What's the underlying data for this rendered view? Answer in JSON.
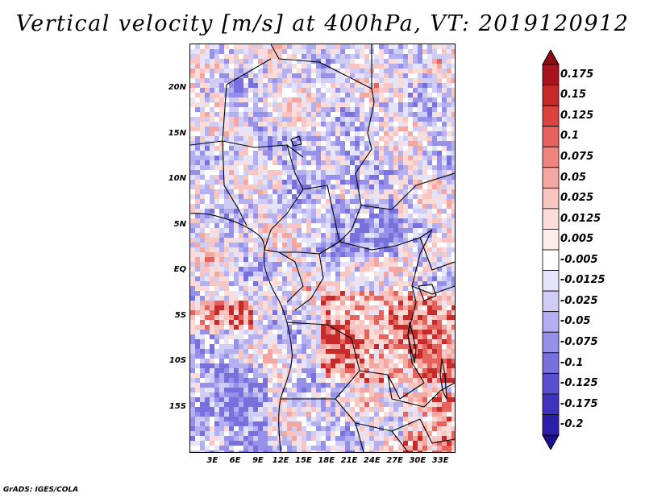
{
  "title": "Vertical velocity [m/s] at 400hPa, VT: 2019120912",
  "credit": "GrADS: IGES/COLA",
  "map": {
    "type": "heatmap",
    "variable": "Vertical velocity",
    "units": "m/s",
    "level": "400hPa",
    "valid_time": "2019120912",
    "region": "Central Africa",
    "lon_range": [
      0,
      35
    ],
    "lat_range": [
      -20,
      25
    ],
    "y_ticks": [
      {
        "label": "20N",
        "lat": 20
      },
      {
        "label": "15N",
        "lat": 15
      },
      {
        "label": "10N",
        "lat": 10
      },
      {
        "label": "5N",
        "lat": 5
      },
      {
        "label": "EQ",
        "lat": 0
      },
      {
        "label": "5S",
        "lat": -5
      },
      {
        "label": "10S",
        "lat": -10
      },
      {
        "label": "15S",
        "lat": -15
      }
    ],
    "x_ticks": [
      {
        "label": "3E",
        "lon": 3
      },
      {
        "label": "6E",
        "lon": 6
      },
      {
        "label": "9E",
        "lon": 9
      },
      {
        "label": "12E",
        "lon": 12
      },
      {
        "label": "15E",
        "lon": 15
      },
      {
        "label": "18E",
        "lon": 18
      },
      {
        "label": "21E",
        "lon": 21
      },
      {
        "label": "24E",
        "lon": 24
      },
      {
        "label": "27E",
        "lon": 27
      },
      {
        "label": "30E",
        "lon": 30
      },
      {
        "label": "33E",
        "lon": 33
      }
    ]
  },
  "colorbar": {
    "levels": [
      {
        "label": "0.175",
        "value": 0.175,
        "color": "#a8141e"
      },
      {
        "label": "0.15",
        "value": 0.15,
        "color": "#c62a2a"
      },
      {
        "label": "0.125",
        "value": 0.125,
        "color": "#da4340"
      },
      {
        "label": "0.1",
        "value": 0.1,
        "color": "#e6625c"
      },
      {
        "label": "0.075",
        "value": 0.075,
        "color": "#ef857e"
      },
      {
        "label": "0.05",
        "value": 0.05,
        "color": "#f4a7a0"
      },
      {
        "label": "0.025",
        "value": 0.025,
        "color": "#f8c5c0"
      },
      {
        "label": "0.0125",
        "value": 0.0125,
        "color": "#fbdcd8"
      },
      {
        "label": "0.005",
        "value": 0.005,
        "color": "#fdeeec"
      },
      {
        "label": "-0.005",
        "value": -0.005,
        "color": "#ffffff"
      },
      {
        "label": "-0.0125",
        "value": -0.0125,
        "color": "#e6e4fb"
      },
      {
        "label": "-0.025",
        "value": -0.025,
        "color": "#cfccf6"
      },
      {
        "label": "-0.05",
        "value": -0.05,
        "color": "#b3aff0"
      },
      {
        "label": "-0.075",
        "value": -0.075,
        "color": "#9690e8"
      },
      {
        "label": "-0.1",
        "value": -0.1,
        "color": "#7870dd"
      },
      {
        "label": "-0.125",
        "value": -0.125,
        "color": "#5a50cf"
      },
      {
        "label": "-0.175",
        "value": -0.175,
        "color": "#3e33bd"
      },
      {
        "label": "-0.2",
        "value": -0.2,
        "color": "#2b1fa8"
      }
    ],
    "over_color": "#8e0a14",
    "under_color": "#1c0f8e"
  }
}
